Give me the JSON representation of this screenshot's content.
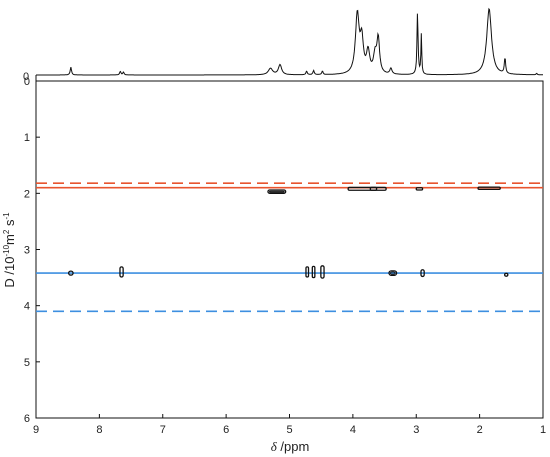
{
  "chart_data": {
    "type": "scatter",
    "subtype": "DOSY contour plot with 1D NMR projection",
    "title": "",
    "xlabel_italic": "δ",
    "xlabel_rest": " /ppm",
    "ylabel_main": "D /10",
    "ylabel_exp1": "-10",
    "ylabel_mid": "m",
    "ylabel_exp2": "2",
    "ylabel_end": " s",
    "ylabel_exp3": "-1",
    "xlim": [
      9,
      1
    ],
    "ylim": [
      0,
      6
    ],
    "x_reversed": true,
    "y_reversed": true,
    "xticks": [
      9,
      8,
      7,
      6,
      5,
      4,
      3,
      2,
      1
    ],
    "yticks": [
      0,
      1,
      2,
      3,
      4,
      5,
      6
    ],
    "projection_axis_label": "0",
    "colors": {
      "red": "#e8542f",
      "blue": "#3d8fe0",
      "contour": "#111111",
      "spectrum": "#111111"
    },
    "reference_lines": [
      {
        "color": "red",
        "style": "dashed",
        "D": 1.82
      },
      {
        "color": "red",
        "style": "solid",
        "D": 1.9
      },
      {
        "color": "blue",
        "style": "solid",
        "D": 3.42
      },
      {
        "color": "blue",
        "style": "dashed",
        "D": 4.1
      }
    ],
    "contours": [
      {
        "x": 5.2,
        "D": 1.97,
        "w": 0.28,
        "h": 0.06
      },
      {
        "x": 3.85,
        "D": 1.92,
        "w": 0.45,
        "h": 0.05
      },
      {
        "x": 3.6,
        "D": 1.92,
        "w": 0.25,
        "h": 0.05
      },
      {
        "x": 2.95,
        "D": 1.92,
        "w": 0.1,
        "h": 0.04
      },
      {
        "x": 1.85,
        "D": 1.91,
        "w": 0.35,
        "h": 0.04
      },
      {
        "x": 8.45,
        "D": 3.42,
        "w": 0.07,
        "h": 0.07
      },
      {
        "x": 7.65,
        "D": 3.4,
        "w": 0.05,
        "h": 0.18
      },
      {
        "x": 4.72,
        "D": 3.4,
        "w": 0.04,
        "h": 0.18
      },
      {
        "x": 4.62,
        "D": 3.4,
        "w": 0.04,
        "h": 0.2
      },
      {
        "x": 4.48,
        "D": 3.4,
        "w": 0.05,
        "h": 0.22
      },
      {
        "x": 3.37,
        "D": 3.42,
        "w": 0.12,
        "h": 0.08
      },
      {
        "x": 2.9,
        "D": 3.42,
        "w": 0.05,
        "h": 0.12
      },
      {
        "x": 1.58,
        "D": 3.45,
        "w": 0.05,
        "h": 0.05
      }
    ],
    "spectrum_peaks": [
      {
        "x": 8.45,
        "h": 0.11,
        "w": 0.012
      },
      {
        "x": 7.67,
        "h": 0.05,
        "w": 0.012
      },
      {
        "x": 7.62,
        "h": 0.04,
        "w": 0.012
      },
      {
        "x": 5.3,
        "h": 0.09,
        "w": 0.04
      },
      {
        "x": 5.15,
        "h": 0.14,
        "w": 0.03
      },
      {
        "x": 4.73,
        "h": 0.05,
        "w": 0.012
      },
      {
        "x": 4.62,
        "h": 0.06,
        "w": 0.012
      },
      {
        "x": 4.48,
        "h": 0.05,
        "w": 0.012
      },
      {
        "x": 3.93,
        "h": 0.82,
        "w": 0.035
      },
      {
        "x": 3.86,
        "h": 0.45,
        "w": 0.03
      },
      {
        "x": 3.76,
        "h": 0.3,
        "w": 0.03
      },
      {
        "x": 3.65,
        "h": 0.25,
        "w": 0.03
      },
      {
        "x": 3.6,
        "h": 0.48,
        "w": 0.025
      },
      {
        "x": 3.4,
        "h": 0.08,
        "w": 0.02
      },
      {
        "x": 2.98,
        "h": 0.88,
        "w": 0.01
      },
      {
        "x": 2.92,
        "h": 0.55,
        "w": 0.008
      },
      {
        "x": 1.85,
        "h": 0.92,
        "w": 0.045
      },
      {
        "x": 1.6,
        "h": 0.22,
        "w": 0.012
      },
      {
        "x": 1.1,
        "h": 0.02,
        "w": 0.01
      }
    ]
  }
}
